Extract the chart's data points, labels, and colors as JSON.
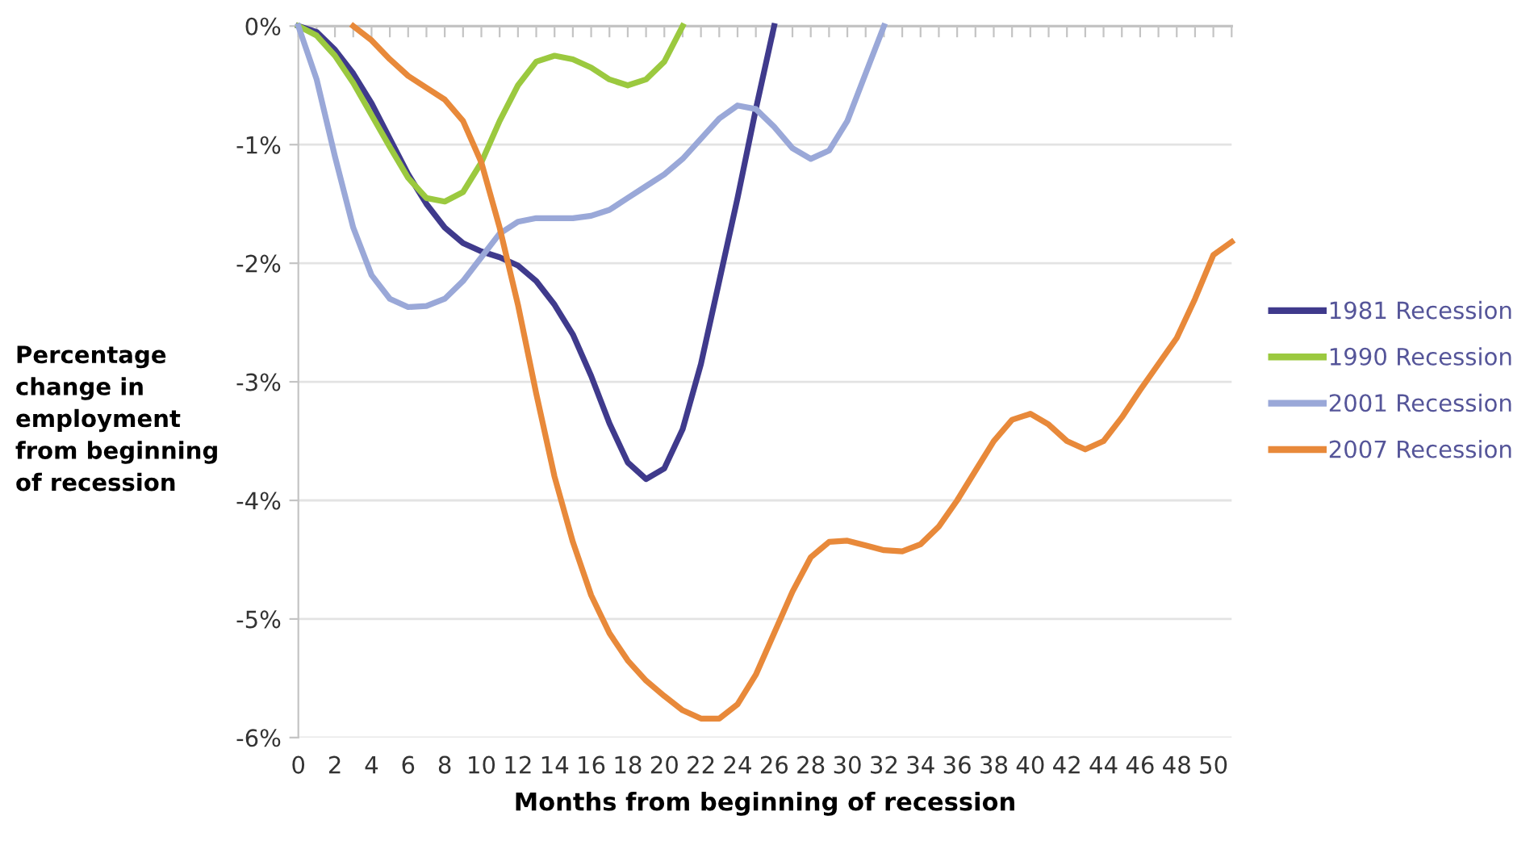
{
  "chart_data": {
    "type": "line",
    "xlabel": "Months from beginning of recession",
    "ylabel": "Percentage\nchange in\nemployment\nfrom beginning\nof recession",
    "xlim": [
      0,
      51
    ],
    "ylim": [
      -6,
      0
    ],
    "xticks": [
      0,
      {
        "value": 1,
        "label": null
      },
      2,
      {
        "value": 3,
        "label": null
      },
      4,
      {
        "value": 5,
        "label": null
      },
      6,
      {
        "value": 7,
        "label": null
      },
      8,
      {
        "value": 9,
        "label": null
      },
      10,
      {
        "value": 11,
        "label": null
      },
      12,
      {
        "value": 13,
        "label": null
      },
      14,
      {
        "value": 15,
        "label": null
      },
      16,
      {
        "value": 17,
        "label": null
      },
      18,
      {
        "value": 19,
        "label": null
      },
      20,
      {
        "value": 21,
        "label": null
      },
      22,
      {
        "value": 23,
        "label": null
      },
      24,
      {
        "value": 25,
        "label": null
      },
      26,
      {
        "value": 27,
        "label": null
      },
      28,
      {
        "value": 29,
        "label": null
      },
      30,
      {
        "value": 31,
        "label": null
      },
      32,
      {
        "value": 33,
        "label": null
      },
      34,
      {
        "value": 35,
        "label": null
      },
      36,
      {
        "value": 37,
        "label": null
      },
      38,
      {
        "value": 39,
        "label": null
      },
      40,
      {
        "value": 41,
        "label": null
      },
      42,
      {
        "value": 43,
        "label": null
      },
      44,
      {
        "value": 45,
        "label": null
      },
      46,
      {
        "value": 47,
        "label": null
      },
      48,
      {
        "value": 49,
        "label": null
      },
      50,
      {
        "value": 51,
        "label": null
      }
    ],
    "yticks": [
      {
        "value": 0,
        "label": "0%"
      },
      {
        "value": -1,
        "label": "-1%"
      },
      {
        "value": -2,
        "label": "-2%"
      },
      {
        "value": -3,
        "label": "-3%"
      },
      {
        "value": -4,
        "label": "-4%"
      },
      {
        "value": -5,
        "label": "-5%"
      },
      {
        "value": -6,
        "label": "-6%"
      }
    ],
    "grid": "y",
    "legend": "right",
    "marker": "none",
    "line_style": "solid",
    "series": [
      {
        "name": "1981 Recession",
        "color": "#3f3a8c",
        "x": [
          0,
          1,
          2,
          3,
          4,
          5,
          6,
          7,
          8,
          9,
          10,
          11,
          12,
          13,
          14,
          15,
          16,
          17,
          18,
          19,
          20,
          21,
          22,
          23,
          24,
          25,
          26
        ],
        "values": [
          0,
          -0.05,
          -0.2,
          -0.4,
          -0.65,
          -0.95,
          -1.25,
          -1.5,
          -1.7,
          -1.83,
          -1.9,
          -1.95,
          -2.02,
          -2.15,
          -2.35,
          -2.6,
          -2.95,
          -3.35,
          -3.68,
          -3.82,
          -3.73,
          -3.4,
          -2.85,
          -2.15,
          -1.45,
          -0.7,
          0
        ]
      },
      {
        "name": "1990 Recession",
        "color": "#9bc93f",
        "x": [
          0,
          1,
          2,
          3,
          4,
          5,
          6,
          7,
          8,
          9,
          10,
          11,
          12,
          13,
          14,
          15,
          16,
          17,
          18,
          19,
          20,
          21
        ],
        "values": [
          0,
          -0.08,
          -0.25,
          -0.48,
          -0.75,
          -1.02,
          -1.28,
          -1.45,
          -1.48,
          -1.4,
          -1.15,
          -0.8,
          -0.5,
          -0.3,
          -0.25,
          -0.28,
          -0.35,
          -0.45,
          -0.5,
          -0.45,
          -0.3,
          0
        ]
      },
      {
        "name": "2001 Recession",
        "color": "#9aa8d8",
        "x": [
          0,
          1,
          2,
          3,
          4,
          5,
          6,
          7,
          8,
          9,
          10,
          11,
          12,
          13,
          14,
          15,
          16,
          17,
          18,
          19,
          20,
          21,
          22,
          23,
          24,
          25,
          26,
          27,
          28,
          29,
          30,
          31,
          32
        ],
        "values": [
          0,
          -0.45,
          -1.1,
          -1.7,
          -2.1,
          -2.3,
          -2.37,
          -2.36,
          -2.3,
          -2.15,
          -1.95,
          -1.75,
          -1.65,
          -1.62,
          -1.62,
          -1.62,
          -1.6,
          -1.55,
          -1.45,
          -1.35,
          -1.25,
          -1.12,
          -0.95,
          -0.78,
          -0.67,
          -0.7,
          -0.85,
          -1.03,
          -1.12,
          -1.05,
          -0.8,
          -0.4,
          0
        ]
      },
      {
        "name": "2007 Recession",
        "color": "#e8893a",
        "x": [
          3,
          4,
          5,
          6,
          7,
          8,
          9,
          10,
          11,
          12,
          13,
          14,
          15,
          16,
          17,
          18,
          19,
          20,
          21,
          22,
          23,
          24,
          25,
          26,
          27,
          28,
          29,
          30,
          31,
          32,
          33,
          34,
          35,
          36,
          37,
          38,
          39,
          40,
          41,
          42,
          43,
          44,
          45,
          46,
          47,
          48,
          49,
          50,
          51
        ],
        "values": [
          0,
          -0.12,
          -0.28,
          -0.42,
          -0.52,
          -0.62,
          -0.8,
          -1.15,
          -1.7,
          -2.35,
          -3.1,
          -3.8,
          -4.35,
          -4.8,
          -5.12,
          -5.35,
          -5.52,
          -5.65,
          -5.77,
          -5.84,
          -5.84,
          -5.72,
          -5.47,
          -5.12,
          -4.77,
          -4.48,
          -4.35,
          -4.34,
          -4.38,
          -4.42,
          -4.43,
          -4.37,
          -4.22,
          -4.0,
          -3.75,
          -3.5,
          -3.32,
          -3.27,
          -3.36,
          -3.5,
          -3.57,
          -3.5,
          -3.3,
          -3.07,
          -2.85,
          -2.63,
          -2.3,
          -1.93,
          -1.82
        ]
      }
    ]
  }
}
